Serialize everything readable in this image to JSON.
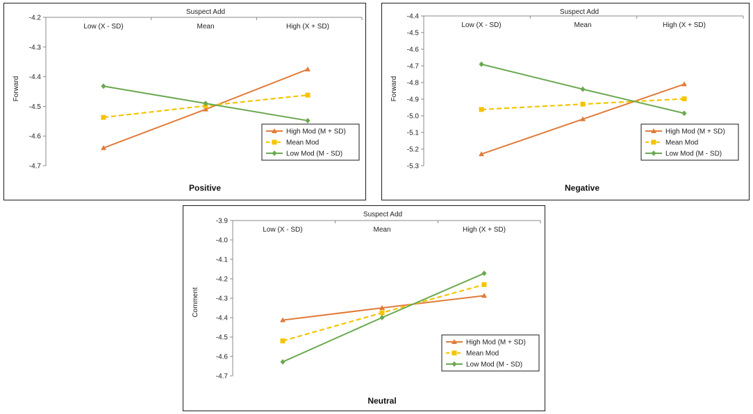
{
  "chart_data": [
    {
      "type": "line",
      "title": "Positive",
      "xlabel": "Suspect Add",
      "ylabel": "Forward",
      "categories": [
        "Low (X - SD)",
        "Mean",
        "High (X + SD)"
      ],
      "ylim": [
        -4.7,
        -4.2
      ],
      "yticks": [
        -4.2,
        -4.3,
        -4.4,
        -4.5,
        -4.6,
        -4.7
      ],
      "ytick_labels": [
        "-4.2",
        "-4.3",
        "-4.4",
        "-4.5",
        "-4.6",
        "-4.7"
      ],
      "grid": false,
      "legend": "bottom-right",
      "series": [
        {
          "name": "High Mod (M + SD)",
          "values": [
            -4.64,
            -4.51,
            -4.375
          ],
          "color": "#e07b39",
          "marker": "triangle",
          "dash": false
        },
        {
          "name": "Mean Mod",
          "values": [
            -4.537,
            -4.498,
            -4.462
          ],
          "color": "#f5c400",
          "marker": "square",
          "dash": true
        },
        {
          "name": "Low Mod (M - SD)",
          "values": [
            -4.432,
            -4.49,
            -4.548
          ],
          "color": "#6aa84f",
          "marker": "diamond",
          "dash": false
        }
      ]
    },
    {
      "type": "line",
      "title": "Negative",
      "xlabel": "Suspect Add",
      "ylabel": "Forward",
      "categories": [
        "Low (X - SD)",
        "Mean",
        "High (X + SD)"
      ],
      "ylim": [
        -5.3,
        -4.4
      ],
      "yticks": [
        -4.4,
        -4.5,
        -4.6,
        -4.7,
        -4.8,
        -4.9,
        -5.0,
        -5.1,
        -5.2,
        -5.3
      ],
      "ytick_labels": [
        "-4.4",
        "-4.5",
        "-4.6",
        "-4.7",
        "-4.8",
        "-4.9",
        "-5.0",
        "-5.1",
        "-5.2",
        "-5.3"
      ],
      "grid": false,
      "legend": "bottom-right",
      "series": [
        {
          "name": "High Mod (M + SD)",
          "values": [
            -5.23,
            -5.02,
            -4.81
          ],
          "color": "#e07b39",
          "marker": "triangle",
          "dash": false
        },
        {
          "name": "Mean Mod",
          "values": [
            -4.962,
            -4.93,
            -4.898
          ],
          "color": "#f5c400",
          "marker": "square",
          "dash": true
        },
        {
          "name": "Low Mod (M - SD)",
          "values": [
            -4.69,
            -4.84,
            -4.985
          ],
          "color": "#6aa84f",
          "marker": "diamond",
          "dash": false
        }
      ]
    },
    {
      "type": "line",
      "title": "Neutral",
      "xlabel": "Suspect Add",
      "ylabel": "Comment",
      "categories": [
        "Low (X - SD)",
        "Mean",
        "High (X + SD)"
      ],
      "ylim": [
        -4.7,
        -3.9
      ],
      "yticks": [
        -3.9,
        -4.0,
        -4.1,
        -4.2,
        -4.3,
        -4.4,
        -4.5,
        -4.6,
        -4.7
      ],
      "ytick_labels": [
        "-3.9",
        "-4.0",
        "-4.1",
        "-4.2",
        "-4.3",
        "-4.4",
        "-4.5",
        "-4.6",
        "-4.7"
      ],
      "grid": false,
      "legend": "bottom-right",
      "series": [
        {
          "name": "High Mod (M + SD)",
          "values": [
            -4.413,
            -4.35,
            -4.287
          ],
          "color": "#e07b39",
          "marker": "triangle",
          "dash": false
        },
        {
          "name": "Mean Mod",
          "values": [
            -4.52,
            -4.375,
            -4.23
          ],
          "color": "#f5c400",
          "marker": "square",
          "dash": true
        },
        {
          "name": "Low Mod (M - SD)",
          "values": [
            -4.628,
            -4.4,
            -4.172
          ],
          "color": "#6aa84f",
          "marker": "diamond",
          "dash": false
        }
      ]
    }
  ]
}
